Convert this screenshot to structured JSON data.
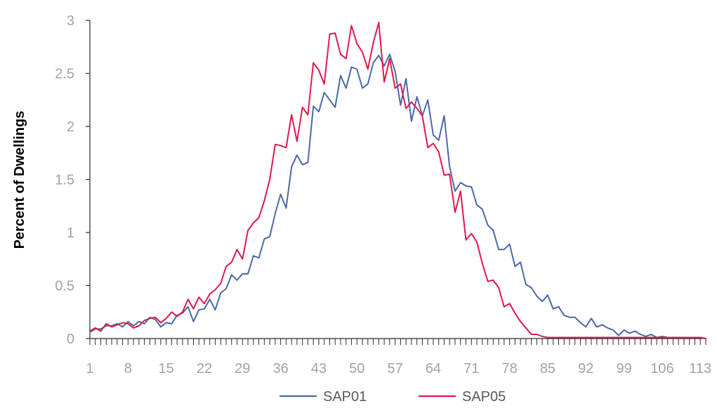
{
  "chart_data": {
    "type": "line",
    "title": "",
    "xlabel": "",
    "ylabel": "Percent of Dwellings",
    "xlim": [
      1,
      114
    ],
    "ylim": [
      0,
      3
    ],
    "yticks": [
      0,
      0.5,
      1,
      1.5,
      2,
      2.5,
      3
    ],
    "ytick_labels": [
      "0",
      "0.5",
      "1",
      "1.5",
      "2",
      "2.5",
      "3"
    ],
    "xticks": [
      1,
      8,
      15,
      22,
      29,
      36,
      43,
      50,
      57,
      64,
      71,
      78,
      85,
      92,
      99,
      106,
      113
    ],
    "xtick_labels": [
      "1",
      "8",
      "15",
      "22",
      "29",
      "36",
      "43",
      "50",
      "57",
      "64",
      "71",
      "78",
      "85",
      "92",
      "99",
      "106",
      "113"
    ],
    "grid": false,
    "legend_position": "bottom",
    "series": [
      {
        "name": "SAP01",
        "color": "#4a68ac",
        "x": [
          1,
          2,
          3,
          4,
          5,
          6,
          7,
          8,
          9,
          10,
          11,
          12,
          13,
          14,
          15,
          16,
          17,
          18,
          19,
          20,
          21,
          22,
          23,
          24,
          25,
          26,
          27,
          28,
          29,
          30,
          31,
          32,
          33,
          34,
          35,
          36,
          37,
          38,
          39,
          40,
          41,
          42,
          43,
          44,
          45,
          46,
          47,
          48,
          49,
          50,
          51,
          52,
          53,
          54,
          55,
          56,
          57,
          58,
          59,
          60,
          61,
          62,
          63,
          64,
          65,
          66,
          67,
          68,
          69,
          70,
          71,
          72,
          73,
          74,
          75,
          76,
          77,
          78,
          79,
          80,
          81,
          82,
          83,
          84,
          85,
          86,
          87,
          88,
          89,
          90,
          91,
          92,
          93,
          94,
          95,
          96,
          97,
          98,
          99,
          100,
          101,
          102,
          103,
          104,
          105,
          106,
          107,
          108,
          109,
          110,
          111,
          112,
          113,
          114
        ],
        "values": [
          0.06,
          0.09,
          0.09,
          0.12,
          0.12,
          0.14,
          0.11,
          0.16,
          0.12,
          0.16,
          0.14,
          0.2,
          0.18,
          0.11,
          0.15,
          0.14,
          0.22,
          0.24,
          0.3,
          0.16,
          0.27,
          0.28,
          0.37,
          0.27,
          0.43,
          0.47,
          0.6,
          0.55,
          0.61,
          0.61,
          0.78,
          0.76,
          0.94,
          0.96,
          1.18,
          1.36,
          1.23,
          1.62,
          1.73,
          1.64,
          1.66,
          2.19,
          2.14,
          2.32,
          2.25,
          2.18,
          2.48,
          2.36,
          2.56,
          2.54,
          2.36,
          2.4,
          2.6,
          2.67,
          2.57,
          2.68,
          2.52,
          2.2,
          2.45,
          2.05,
          2.28,
          2.1,
          2.25,
          1.92,
          1.87,
          2.1,
          1.62,
          1.39,
          1.47,
          1.44,
          1.43,
          1.26,
          1.22,
          1.07,
          1.02,
          0.84,
          0.84,
          0.89,
          0.68,
          0.72,
          0.51,
          0.48,
          0.4,
          0.35,
          0.41,
          0.28,
          0.3,
          0.22,
          0.2,
          0.2,
          0.15,
          0.11,
          0.19,
          0.11,
          0.13,
          0.1,
          0.08,
          0.03,
          0.08,
          0.05,
          0.07,
          0.04,
          0.02,
          0.04,
          0.01,
          0.02,
          0.01,
          0.01,
          0.01,
          0.01,
          0.01,
          0.01,
          0.01,
          0.0
        ]
      },
      {
        "name": "SAP05",
        "color": "#e0194a",
        "x": [
          1,
          2,
          3,
          4,
          5,
          6,
          7,
          8,
          9,
          10,
          11,
          12,
          13,
          14,
          15,
          16,
          17,
          18,
          19,
          20,
          21,
          22,
          23,
          24,
          25,
          26,
          27,
          28,
          29,
          30,
          31,
          32,
          33,
          34,
          35,
          36,
          37,
          38,
          39,
          40,
          41,
          42,
          43,
          44,
          45,
          46,
          47,
          48,
          49,
          50,
          51,
          52,
          53,
          54,
          55,
          56,
          57,
          58,
          59,
          60,
          61,
          62,
          63,
          64,
          65,
          66,
          67,
          68,
          69,
          70,
          71,
          72,
          73,
          74,
          75,
          76,
          77,
          78,
          79,
          80,
          81,
          82,
          83,
          84,
          85,
          86,
          87,
          88,
          89,
          90,
          91,
          92,
          93,
          94,
          95,
          96,
          97,
          98,
          99,
          100,
          101,
          102,
          103,
          104,
          105,
          106,
          107,
          108,
          109,
          110,
          111,
          112,
          113,
          114
        ],
        "values": [
          0.07,
          0.1,
          0.07,
          0.14,
          0.11,
          0.13,
          0.15,
          0.14,
          0.1,
          0.12,
          0.17,
          0.19,
          0.2,
          0.15,
          0.19,
          0.25,
          0.21,
          0.25,
          0.37,
          0.28,
          0.39,
          0.33,
          0.42,
          0.46,
          0.52,
          0.68,
          0.72,
          0.84,
          0.75,
          1.02,
          1.09,
          1.14,
          1.3,
          1.5,
          1.83,
          1.82,
          1.8,
          2.11,
          1.86,
          2.18,
          2.11,
          2.6,
          2.53,
          2.4,
          2.87,
          2.88,
          2.68,
          2.64,
          2.95,
          2.78,
          2.7,
          2.54,
          2.79,
          2.98,
          2.42,
          2.64,
          2.36,
          2.4,
          2.17,
          2.23,
          2.17,
          2.1,
          1.8,
          1.84,
          1.76,
          1.54,
          1.55,
          1.19,
          1.39,
          0.93,
          0.99,
          0.91,
          0.71,
          0.54,
          0.55,
          0.48,
          0.3,
          0.33,
          0.24,
          0.16,
          0.1,
          0.04,
          0.04,
          0.02,
          0.01,
          0.01,
          0.01,
          0.01,
          0.01,
          0.01,
          0.01,
          0.01,
          0.01,
          0.01,
          0.01,
          0.01,
          0.01,
          0.01,
          0.01,
          0.01,
          0.01,
          0.01,
          0.01,
          0.01,
          0.01,
          0.01,
          0.01,
          0.01,
          0.01,
          0.01,
          0.01,
          0.01,
          0.01,
          0.0
        ]
      }
    ]
  }
}
